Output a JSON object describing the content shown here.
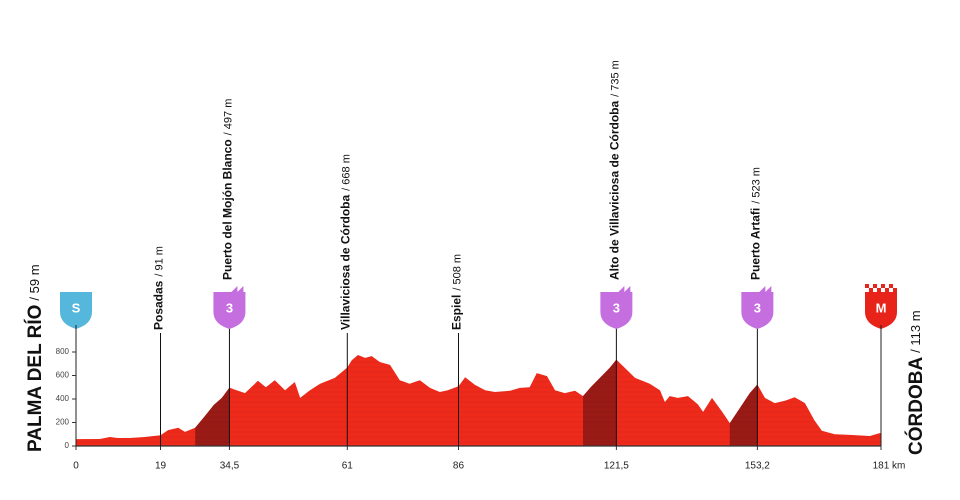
{
  "chart_data": {
    "type": "area",
    "x": [
      0,
      5.4,
      7.6,
      9.4,
      12,
      15.5,
      19,
      20.7,
      23,
      24.5,
      26.8,
      29,
      31,
      32.8,
      34.5,
      35.7,
      38,
      40.9,
      42.7,
      44.7,
      47,
      49.2,
      50.4,
      52.6,
      54.9,
      58.2,
      61,
      62,
      63.4,
      65,
      66.5,
      68.3,
      70.6,
      72.8,
      75,
      77.3,
      79.6,
      81.8,
      83.6,
      86,
      87.5,
      89.7,
      92,
      94.2,
      97.6,
      99.8,
      102,
      103.6,
      105.9,
      107.7,
      109.9,
      112.2,
      114,
      115.6,
      117.8,
      120,
      121.5,
      123.4,
      125.7,
      129,
      131.3,
      132.4,
      133.5,
      135.3,
      137.6,
      139.8,
      141,
      143,
      145.3,
      147,
      149.3,
      151.5,
      153.2,
      154.9,
      157.1,
      159.4,
      161.6,
      163.9,
      166,
      167.7,
      170.6,
      174,
      178.5,
      181
    ],
    "values": [
      59,
      60,
      77,
      68,
      68,
      77,
      91,
      135,
      155,
      120,
      155,
      255,
      350,
      410,
      497,
      480,
      450,
      555,
      500,
      560,
      475,
      545,
      410,
      475,
      530,
      580,
      668,
      730,
      775,
      750,
      765,
      715,
      690,
      560,
      530,
      560,
      495,
      460,
      475,
      508,
      585,
      520,
      475,
      460,
      470,
      495,
      500,
      620,
      595,
      475,
      450,
      470,
      425,
      495,
      580,
      665,
      735,
      665,
      580,
      530,
      475,
      375,
      425,
      410,
      425,
      355,
      290,
      410,
      290,
      195,
      325,
      450,
      523,
      410,
      365,
      385,
      415,
      365,
      220,
      130,
      100,
      95,
      85,
      113
    ],
    "color": "#ee2a1b",
    "climb_color": "#9a1b16",
    "xlim": [
      0,
      181
    ],
    "ylim": [
      0,
      900
    ],
    "xticks": [
      0,
      19,
      {
        "value": 34.5,
        "label": "34,5"
      },
      61,
      86,
      {
        "value": 121.5,
        "label": "121,5"
      },
      {
        "value": 153.2,
        "label": "153,2"
      },
      {
        "value": 181,
        "label": "181 km"
      }
    ],
    "yticks": [
      0,
      200,
      400,
      600,
      800
    ],
    "climbs": [
      {
        "start": 26.8,
        "end": 34.5
      },
      {
        "start": 114,
        "end": 121.5
      },
      {
        "start": 147,
        "end": 153.2
      }
    ],
    "start": {
      "name": "PALMA DEL RÍO",
      "altitude": "/ 59 m",
      "badge": "S"
    },
    "finish": {
      "name": "CÓRDOBA",
      "altitude": "/ 113 m",
      "badge": "M"
    },
    "waypoints": [
      {
        "name": "Posadas",
        "altitude": "/ 91 m",
        "km": 19
      },
      {
        "name": "Puerto del Mojón Blanco",
        "altitude": "/ 497 m",
        "km": 34.5,
        "badge": "3"
      },
      {
        "name": "Villaviciosa de Córdoba",
        "altitude": "/ 668 m",
        "km": 61
      },
      {
        "name": "Espiel",
        "altitude": "/ 508 m",
        "km": 86
      },
      {
        "name": "Alto de Villaviciosa de Córdoba",
        "altitude": "/ 735 m",
        "km": 121.5,
        "badge": "3"
      },
      {
        "name": "Puerto Artafi",
        "altitude": "/ 523 m",
        "km": 153.2,
        "badge": "3"
      }
    ]
  }
}
